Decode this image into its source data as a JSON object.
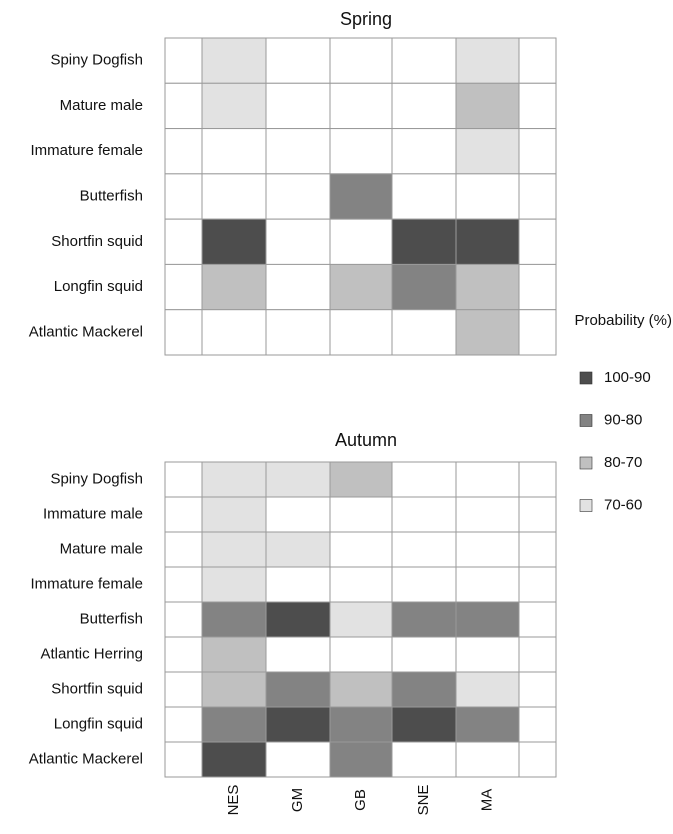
{
  "chart_data": {
    "type": "heatmap",
    "categories": [
      null,
      "NES",
      "GM",
      "GB",
      "SNE",
      "MA",
      null
    ],
    "legend": {
      "title": "Probability (%)",
      "levels": [
        {
          "label": "100-90",
          "color": "#4d4d4d"
        },
        {
          "label": "90-80",
          "color": "#838383"
        },
        {
          "label": "80-70",
          "color": "#c0c0c0"
        },
        {
          "label": "70-60",
          "color": "#e2e2e2"
        }
      ]
    },
    "panels": [
      {
        "title": "Spring",
        "rows": [
          {
            "label": "Spiny Dogfish",
            "cells": [
              null,
              "70-60",
              null,
              null,
              null,
              "70-60",
              null
            ]
          },
          {
            "label": "Mature male",
            "cells": [
              null,
              "70-60",
              null,
              null,
              null,
              "80-70",
              null
            ]
          },
          {
            "label": "Immature female",
            "cells": [
              null,
              null,
              null,
              null,
              null,
              "70-60",
              null
            ]
          },
          {
            "label": "Butterfish",
            "cells": [
              null,
              null,
              null,
              "90-80",
              null,
              null,
              null
            ]
          },
          {
            "label": "Shortfin squid",
            "cells": [
              null,
              "100-90",
              null,
              null,
              "100-90",
              "100-90",
              null
            ]
          },
          {
            "label": "Longfin squid",
            "cells": [
              null,
              "80-70",
              null,
              "80-70",
              "90-80",
              "80-70",
              null
            ]
          },
          {
            "label": "Atlantic Mackerel",
            "cells": [
              null,
              null,
              null,
              null,
              null,
              "80-70",
              null
            ]
          }
        ]
      },
      {
        "title": "Autumn",
        "rows": [
          {
            "label": "Spiny Dogfish",
            "cells": [
              null,
              "70-60",
              "70-60",
              "80-70",
              null,
              null,
              null
            ]
          },
          {
            "label": "Immature male",
            "cells": [
              null,
              "70-60",
              null,
              null,
              null,
              null,
              null
            ]
          },
          {
            "label": "Mature male",
            "cells": [
              null,
              "70-60",
              "70-60",
              null,
              null,
              null,
              null
            ]
          },
          {
            "label": "Immature female",
            "cells": [
              null,
              "70-60",
              null,
              null,
              null,
              null,
              null
            ]
          },
          {
            "label": "Butterfish",
            "cells": [
              null,
              "90-80",
              "100-90",
              "70-60",
              "90-80",
              "90-80",
              null
            ]
          },
          {
            "label": "Atlantic Herring",
            "cells": [
              null,
              "80-70",
              null,
              null,
              null,
              null,
              null
            ]
          },
          {
            "label": "Shortfin squid",
            "cells": [
              null,
              "80-70",
              "90-80",
              "80-70",
              "90-80",
              "70-60",
              null
            ]
          },
          {
            "label": "Longfin squid",
            "cells": [
              null,
              "90-80",
              "100-90",
              "90-80",
              "100-90",
              "90-80",
              null
            ]
          },
          {
            "label": "Atlantic Mackerel",
            "cells": [
              null,
              "100-90",
              null,
              "90-80",
              null,
              null,
              null
            ]
          }
        ]
      }
    ]
  }
}
